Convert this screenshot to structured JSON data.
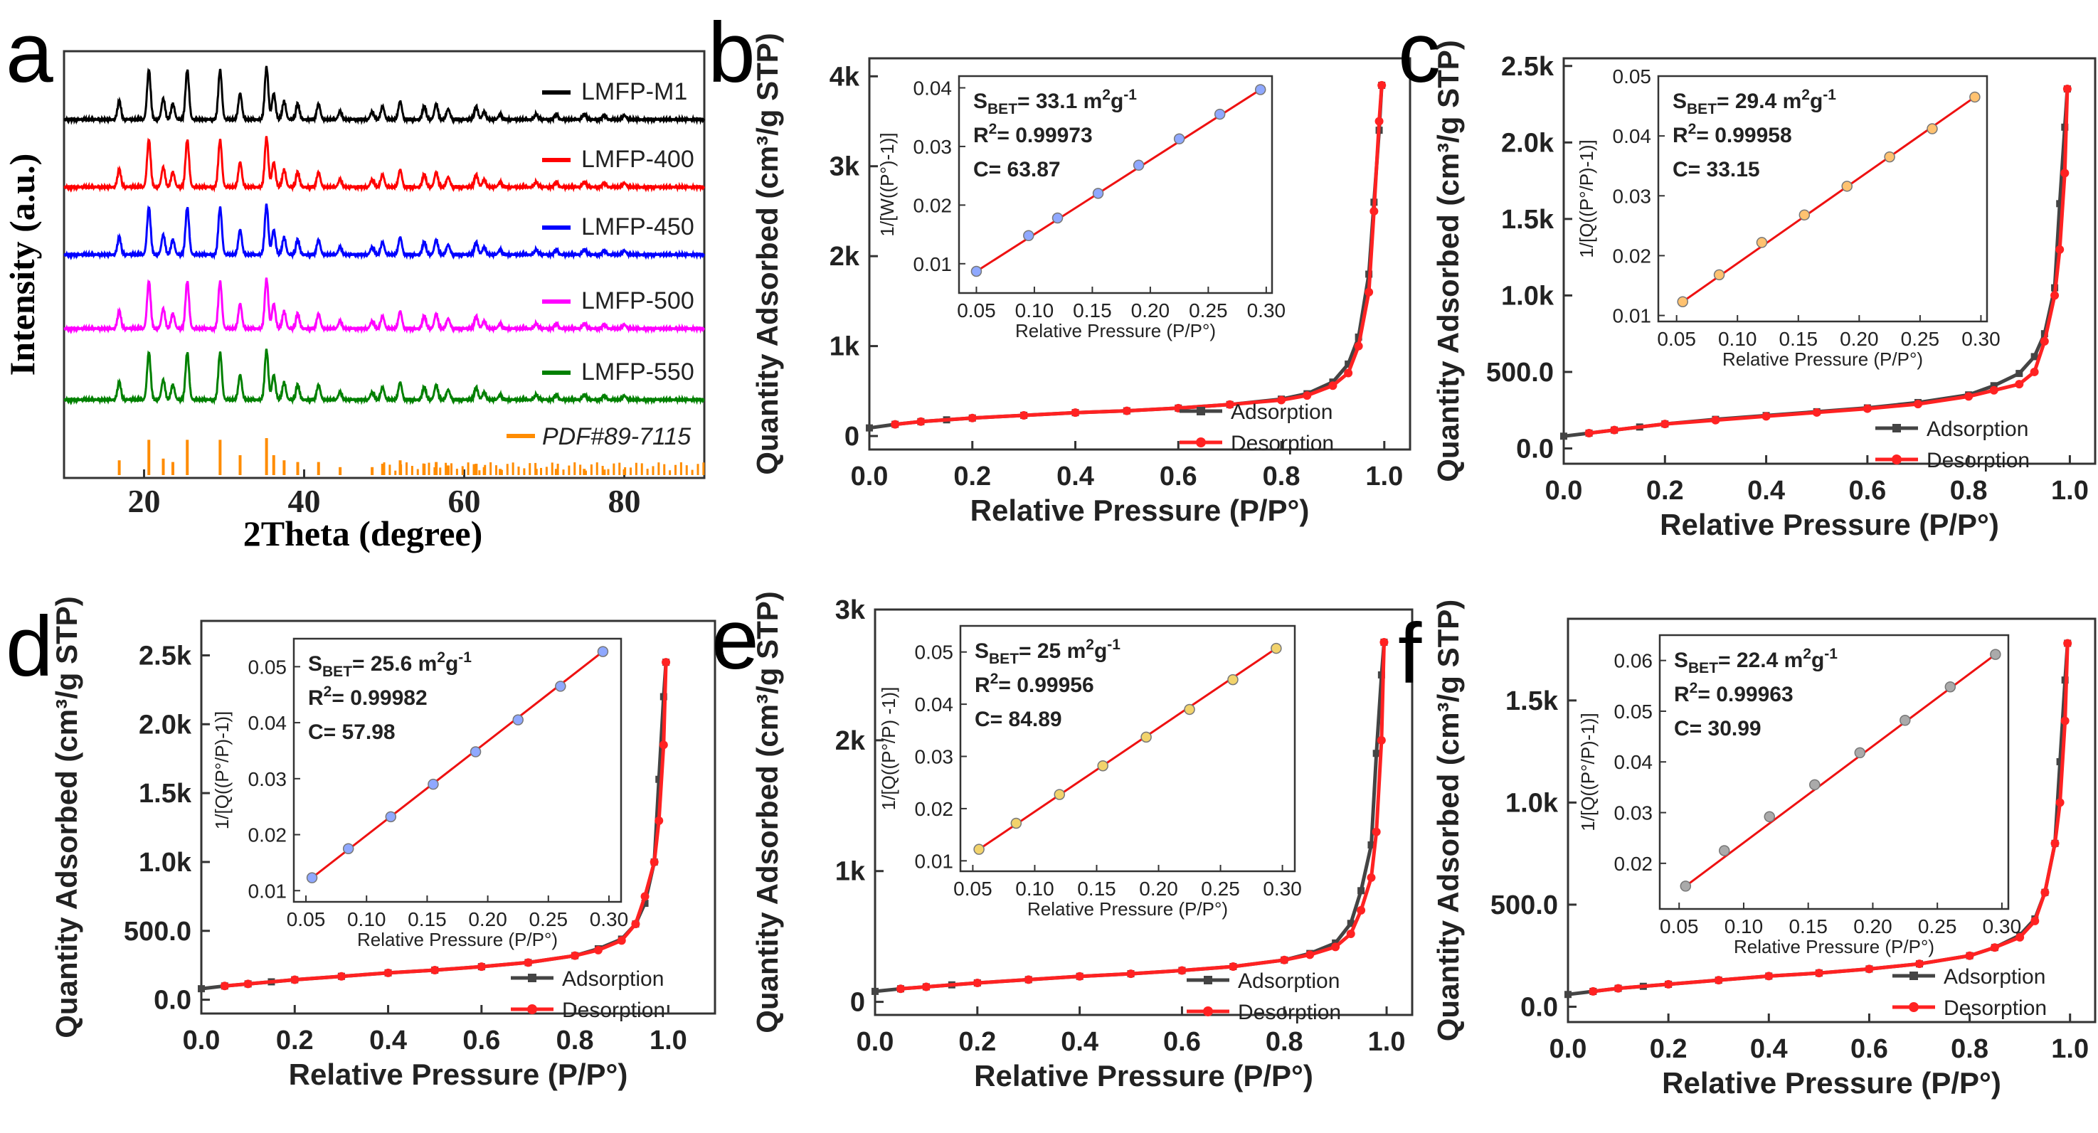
{
  "chart_data": [
    {
      "id": "a",
      "panel_label": "a",
      "type": "line",
      "xlabel": "2Theta (degree)",
      "ylabel": "Intensity (a.u.)",
      "xlim": [
        10,
        90
      ],
      "xticks": [
        20,
        40,
        60,
        80
      ],
      "peaks_2theta": [
        16.9,
        20.6,
        22.4,
        23.6,
        25.4,
        29.5,
        32.0,
        35.3,
        36.2,
        37.5,
        39.2,
        41.8,
        44.5,
        48.5,
        49.8,
        52.0,
        55.0,
        56.5,
        58.0,
        61.5,
        62.5,
        64.5,
        69.0,
        71.5,
        75.0,
        77.5,
        80.0
      ],
      "peak_heights": [
        0.35,
        0.95,
        0.4,
        0.3,
        0.95,
        0.95,
        0.5,
        1.0,
        0.5,
        0.35,
        0.3,
        0.3,
        0.15,
        0.15,
        0.25,
        0.35,
        0.25,
        0.3,
        0.2,
        0.25,
        0.15,
        0.1,
        0.1,
        0.1,
        0.1,
        0.08,
        0.08
      ],
      "series": [
        {
          "name": "LMFP-M1",
          "color": "#000000"
        },
        {
          "name": "LMFP-400",
          "color": "#ff0000"
        },
        {
          "name": "LMFP-450",
          "color": "#0000ff"
        },
        {
          "name": "LMFP-500",
          "color": "#ff00ff"
        },
        {
          "name": "LMFP-550",
          "color": "#008000"
        }
      ],
      "reference": {
        "name": "PDF#89-7115",
        "color": "#ff8c00"
      }
    },
    {
      "id": "b",
      "panel_label": "b",
      "type": "line",
      "xlabel": "Relative Pressure (P/P°)",
      "ylabel": "Quantity Adsorbed (cm³/g STP)",
      "xlim": [
        0,
        1.05
      ],
      "ylim": [
        -150,
        4200
      ],
      "xticks": [
        0.0,
        0.2,
        0.4,
        0.6,
        0.8,
        1.0
      ],
      "xtick_labels": [
        "0.0",
        "0.2",
        "0.4",
        "0.6",
        "0.8",
        "1.0"
      ],
      "yticks": [
        0,
        1000,
        2000,
        3000,
        4000
      ],
      "ytick_labels": [
        "0",
        "1k",
        "2k",
        "3k",
        "4k"
      ],
      "series": [
        {
          "name": "Adsorption",
          "color": "#444444",
          "x": [
            0.0,
            0.05,
            0.1,
            0.15,
            0.2,
            0.3,
            0.4,
            0.5,
            0.6,
            0.7,
            0.8,
            0.85,
            0.9,
            0.93,
            0.95,
            0.97,
            0.98,
            0.99,
            0.995
          ],
          "y": [
            90,
            130,
            160,
            180,
            200,
            230,
            260,
            280,
            310,
            350,
            410,
            470,
            600,
            800,
            1100,
            1800,
            2600,
            3400,
            3900
          ]
        },
        {
          "name": "Desorption",
          "color": "#ff2222",
          "x": [
            0.995,
            0.99,
            0.98,
            0.97,
            0.95,
            0.93,
            0.9,
            0.85,
            0.8,
            0.7,
            0.6,
            0.5,
            0.4,
            0.3,
            0.2,
            0.1,
            0.05
          ],
          "y": [
            3900,
            3500,
            2500,
            1600,
            1000,
            700,
            560,
            450,
            400,
            350,
            310,
            280,
            260,
            230,
            200,
            160,
            130
          ]
        }
      ],
      "inset": {
        "xlabel": "Relative Pressure (P/P°)",
        "ylabel": "1/[W((P°)-1)]",
        "xlim": [
          0.035,
          0.305
        ],
        "ylim": [
          0.005,
          0.042
        ],
        "xticks": [
          0.05,
          0.1,
          0.15,
          0.2,
          0.25,
          0.3
        ],
        "xtick_labels": [
          "0.05",
          "0.10",
          "0.15",
          "0.20",
          "0.25",
          "0.30"
        ],
        "yticks": [
          0.01,
          0.02,
          0.03,
          0.04
        ],
        "ytick_labels": [
          "0.01",
          "0.02",
          "0.03",
          "0.04"
        ],
        "point_color": "#8fa8ff",
        "points_x": [
          0.05,
          0.095,
          0.12,
          0.155,
          0.19,
          0.225,
          0.26,
          0.295
        ],
        "points_y": [
          0.0087,
          0.0148,
          0.0178,
          0.022,
          0.0268,
          0.0313,
          0.0355,
          0.0397
        ],
        "stats": {
          "sbet": "33.1",
          "r2": "0.99973",
          "c": "63.87"
        }
      }
    },
    {
      "id": "c",
      "panel_label": "c",
      "type": "line",
      "xlabel": "Relative Pressure (P/P°)",
      "ylabel": "Quantity Adsorbed (cm³/g STP)",
      "xlim": [
        0,
        1.05
      ],
      "ylim": [
        -100,
        2550
      ],
      "xticks": [
        0.0,
        0.2,
        0.4,
        0.6,
        0.8,
        1.0
      ],
      "xtick_labels": [
        "0.0",
        "0.2",
        "0.4",
        "0.6",
        "0.8",
        "1.0"
      ],
      "yticks": [
        0,
        500,
        1000,
        1500,
        2000,
        2500
      ],
      "ytick_labels": [
        "0.0",
        "500.0",
        "1.0k",
        "1.5k",
        "2.0k",
        "2.5k"
      ],
      "series": [
        {
          "name": "Adsorption",
          "color": "#444444",
          "x": [
            0.0,
            0.05,
            0.1,
            0.15,
            0.2,
            0.3,
            0.4,
            0.5,
            0.6,
            0.7,
            0.8,
            0.85,
            0.9,
            0.93,
            0.95,
            0.97,
            0.98,
            0.99,
            0.995
          ],
          "y": [
            80,
            100,
            120,
            140,
            160,
            190,
            215,
            240,
            265,
            300,
            350,
            410,
            490,
            600,
            750,
            1050,
            1600,
            2100,
            2350
          ]
        },
        {
          "name": "Desorption",
          "color": "#ff2222",
          "x": [
            0.995,
            0.99,
            0.98,
            0.97,
            0.95,
            0.93,
            0.9,
            0.85,
            0.8,
            0.7,
            0.6,
            0.5,
            0.4,
            0.3,
            0.2,
            0.1,
            0.05
          ],
          "y": [
            2350,
            1800,
            1300,
            1000,
            700,
            500,
            420,
            380,
            340,
            290,
            260,
            235,
            210,
            185,
            160,
            120,
            100
          ]
        }
      ],
      "inset": {
        "xlabel": "Relative Pressure (P/P°)",
        "ylabel": "1/[Q((P°/P)-1)]",
        "xlim": [
          0.035,
          0.305
        ],
        "ylim": [
          0.009,
          0.05
        ],
        "xticks": [
          0.05,
          0.1,
          0.15,
          0.2,
          0.25,
          0.3
        ],
        "xtick_labels": [
          "0.05",
          "0.10",
          "0.15",
          "0.20",
          "0.25",
          "0.30"
        ],
        "yticks": [
          0.01,
          0.02,
          0.03,
          0.04,
          0.05
        ],
        "ytick_labels": [
          "0.01",
          "0.02",
          "0.03",
          "0.04",
          "0.05"
        ],
        "point_color": "#ffc270",
        "points_x": [
          0.055,
          0.085,
          0.12,
          0.155,
          0.19,
          0.225,
          0.26,
          0.295
        ],
        "points_y": [
          0.0123,
          0.0168,
          0.0222,
          0.0268,
          0.0316,
          0.0365,
          0.0412,
          0.0465
        ],
        "stats": {
          "sbet": "29.4",
          "r2": "0.99958",
          "c": "33.15"
        }
      }
    },
    {
      "id": "d",
      "panel_label": "d",
      "type": "line",
      "xlabel": "Relative Pressure (P/P°)",
      "ylabel": "Quantity Adsorbed (cm³/g STP)",
      "xlim": [
        0,
        1.1
      ],
      "ylim": [
        -100,
        2750
      ],
      "xticks": [
        0.0,
        0.2,
        0.4,
        0.6,
        0.8,
        1.0
      ],
      "xtick_labels": [
        "0.0",
        "0.2",
        "0.4",
        "0.6",
        "0.8",
        "1.0"
      ],
      "yticks": [
        0,
        500,
        1000,
        1500,
        2000,
        2500
      ],
      "ytick_labels": [
        "0.0",
        "500.0",
        "1.0k",
        "1.5k",
        "2.0k",
        "2.5k"
      ],
      "series": [
        {
          "name": "Adsorption",
          "color": "#444444",
          "x": [
            0.0,
            0.05,
            0.1,
            0.15,
            0.2,
            0.3,
            0.4,
            0.5,
            0.6,
            0.7,
            0.8,
            0.85,
            0.9,
            0.93,
            0.95,
            0.97,
            0.98,
            0.99,
            0.995
          ],
          "y": [
            80,
            100,
            115,
            130,
            145,
            170,
            195,
            215,
            240,
            270,
            320,
            370,
            440,
            550,
            700,
            1000,
            1600,
            2200,
            2450
          ]
        },
        {
          "name": "Desorption",
          "color": "#ff2222",
          "x": [
            0.995,
            0.99,
            0.98,
            0.97,
            0.95,
            0.93,
            0.9,
            0.85,
            0.8,
            0.7,
            0.6,
            0.5,
            0.4,
            0.3,
            0.2,
            0.1,
            0.05
          ],
          "y": [
            2450,
            1850,
            1300,
            1000,
            750,
            550,
            430,
            360,
            320,
            270,
            240,
            215,
            195,
            170,
            145,
            115,
            100
          ]
        }
      ],
      "inset": {
        "xlabel": "Relative Pressure (P/P°)",
        "ylabel": "1/[Q((P°/P)-1)]",
        "xlim": [
          0.04,
          0.31
        ],
        "ylim": [
          0.008,
          0.055
        ],
        "xticks": [
          0.05,
          0.1,
          0.15,
          0.2,
          0.25,
          0.3
        ],
        "xtick_labels": [
          "0.05",
          "0.10",
          "0.15",
          "0.20",
          "0.25",
          "0.30"
        ],
        "yticks": [
          0.01,
          0.02,
          0.03,
          0.04,
          0.05
        ],
        "ytick_labels": [
          "0.01",
          "0.02",
          "0.03",
          "0.04",
          "0.05"
        ],
        "point_color": "#8fa8ff",
        "points_x": [
          0.055,
          0.085,
          0.12,
          0.155,
          0.19,
          0.225,
          0.26,
          0.295
        ],
        "points_y": [
          0.0123,
          0.0175,
          0.0232,
          0.029,
          0.0348,
          0.0405,
          0.0465,
          0.0527
        ],
        "stats": {
          "sbet": "25.6",
          "r2": "0.99982",
          "c": "57.98"
        }
      }
    },
    {
      "id": "e",
      "panel_label": "e",
      "type": "line",
      "xlabel": "Relative Pressure (P/P°)",
      "ylabel": "Quantity Adsorbed (cm³/g STP)",
      "xlim": [
        0,
        1.05
      ],
      "ylim": [
        -100,
        3000
      ],
      "xticks": [
        0.0,
        0.2,
        0.4,
        0.6,
        0.8,
        1.0
      ],
      "xtick_labels": [
        "0.0",
        "0.2",
        "0.4",
        "0.6",
        "0.8",
        "1.0"
      ],
      "yticks": [
        0,
        1000,
        2000,
        3000
      ],
      "ytick_labels": [
        "0",
        "1k",
        "2k",
        "3k"
      ],
      "series": [
        {
          "name": "Adsorption",
          "color": "#444444",
          "x": [
            0.0,
            0.05,
            0.1,
            0.15,
            0.2,
            0.3,
            0.4,
            0.5,
            0.6,
            0.7,
            0.8,
            0.85,
            0.9,
            0.93,
            0.95,
            0.97,
            0.98,
            0.99,
            0.995
          ],
          "y": [
            80,
            100,
            115,
            130,
            145,
            170,
            195,
            215,
            240,
            270,
            320,
            370,
            450,
            600,
            850,
            1200,
            1900,
            2500,
            2750
          ]
        },
        {
          "name": "Desorption",
          "color": "#ff2222",
          "x": [
            0.995,
            0.99,
            0.98,
            0.97,
            0.95,
            0.93,
            0.9,
            0.85,
            0.8,
            0.7,
            0.6,
            0.5,
            0.4,
            0.3,
            0.2,
            0.1,
            0.05
          ],
          "y": [
            2750,
            2000,
            1300,
            950,
            700,
            520,
            420,
            360,
            320,
            270,
            240,
            215,
            195,
            170,
            145,
            115,
            100
          ]
        }
      ],
      "inset": {
        "xlabel": "Relative Pressure (P/P°)",
        "ylabel": "1/[Q((P°/P) -1)]",
        "xlim": [
          0.04,
          0.31
        ],
        "ylim": [
          0.008,
          0.055
        ],
        "xticks": [
          0.05,
          0.1,
          0.15,
          0.2,
          0.25,
          0.3
        ],
        "xtick_labels": [
          "0.05",
          "0.10",
          "0.15",
          "0.20",
          "0.25",
          "0.30"
        ],
        "yticks": [
          0.01,
          0.02,
          0.03,
          0.04,
          0.05
        ],
        "ytick_labels": [
          "0.01",
          "0.02",
          "0.03",
          "0.04",
          "0.05"
        ],
        "point_color": "#f2d36b",
        "points_x": [
          0.055,
          0.085,
          0.12,
          0.155,
          0.19,
          0.225,
          0.26,
          0.295
        ],
        "points_y": [
          0.0122,
          0.0172,
          0.0227,
          0.0282,
          0.0337,
          0.039,
          0.0447,
          0.0507
        ],
        "stats": {
          "sbet": "25",
          "r2": "0.99956",
          "c": "84.89"
        }
      }
    },
    {
      "id": "f",
      "panel_label": "f",
      "type": "line",
      "xlabel": "Relative Pressure (P/P°)",
      "ylabel": "Quantity Adsorbed (cm³/g STP)",
      "xlim": [
        0,
        1.05
      ],
      "ylim": [
        -75,
        1900
      ],
      "xticks": [
        0.0,
        0.2,
        0.4,
        0.6,
        0.8,
        1.0
      ],
      "xtick_labels": [
        "0.0",
        "0.2",
        "0.4",
        "0.6",
        "0.8",
        "1.0"
      ],
      "yticks": [
        0,
        500,
        1000,
        1500
      ],
      "ytick_labels": [
        "0.0",
        "500.0",
        "1.0k",
        "1.5k"
      ],
      "series": [
        {
          "name": "Adsorption",
          "color": "#444444",
          "x": [
            0.0,
            0.05,
            0.1,
            0.15,
            0.2,
            0.3,
            0.4,
            0.5,
            0.6,
            0.7,
            0.8,
            0.85,
            0.9,
            0.93,
            0.95,
            0.97,
            0.98,
            0.99,
            0.995
          ],
          "y": [
            60,
            75,
            90,
            100,
            110,
            130,
            150,
            165,
            185,
            210,
            250,
            290,
            350,
            430,
            560,
            800,
            1200,
            1600,
            1780
          ]
        },
        {
          "name": "Desorption",
          "color": "#ff2222",
          "x": [
            0.995,
            0.99,
            0.98,
            0.97,
            0.95,
            0.93,
            0.9,
            0.85,
            0.8,
            0.7,
            0.6,
            0.5,
            0.4,
            0.3,
            0.2,
            0.1,
            0.05
          ],
          "y": [
            1780,
            1400,
            1000,
            800,
            560,
            420,
            340,
            290,
            250,
            210,
            185,
            165,
            150,
            130,
            110,
            90,
            75
          ]
        }
      ],
      "inset": {
        "xlabel": "Relative Pressure (P/P°)",
        "ylabel": "1/[Q((P°/P)-1)]",
        "xlim": [
          0.035,
          0.305
        ],
        "ylim": [
          0.011,
          0.065
        ],
        "xticks": [
          0.05,
          0.1,
          0.15,
          0.2,
          0.25,
          0.3
        ],
        "xtick_labels": [
          "0.05",
          "0.10",
          "0.15",
          "0.20",
          "0.25",
          "0.30"
        ],
        "yticks": [
          0.02,
          0.03,
          0.04,
          0.05,
          0.06
        ],
        "ytick_labels": [
          "0.02",
          "0.03",
          "0.04",
          "0.05",
          "0.06"
        ],
        "point_color": "#aaaaaa",
        "points_x": [
          0.055,
          0.085,
          0.12,
          0.155,
          0.19,
          0.225,
          0.26,
          0.295
        ],
        "points_y": [
          0.0155,
          0.0225,
          0.0292,
          0.0355,
          0.0418,
          0.0482,
          0.0548,
          0.0612
        ],
        "stats": {
          "sbet": "22.4",
          "r2": "0.99963",
          "c": "30.99"
        }
      }
    }
  ]
}
